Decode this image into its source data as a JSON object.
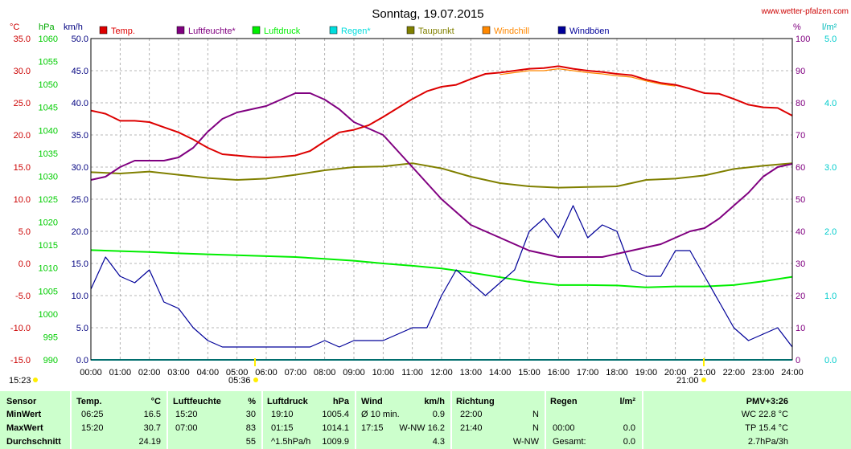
{
  "header": {
    "title": "Sonntag, 19.07.2015",
    "site": "www.wetter-pfalzen.com"
  },
  "axes": {
    "temp": {
      "unit": "°C",
      "min": -15,
      "max": 35,
      "step": 5,
      "color": "#cc0000"
    },
    "pressure": {
      "unit": "hPa",
      "min": 990,
      "max": 1060,
      "step": 5,
      "color": "#00cc00"
    },
    "wind": {
      "unit": "km/h",
      "min": 0,
      "max": 50,
      "step": 5,
      "color": "#000080"
    },
    "humidity": {
      "unit": "%",
      "min": 0,
      "max": 100,
      "step": 10,
      "color": "#800080"
    },
    "rain": {
      "unit": "l/m²",
      "min": 0,
      "max": 5,
      "step": 1,
      "color": "#00cccc"
    }
  },
  "legend": [
    {
      "label": "Temp.",
      "color": "#dd0000"
    },
    {
      "label": "Luftfeuchte*",
      "color": "#800080"
    },
    {
      "label": "Luftdruck",
      "color": "#00ee00"
    },
    {
      "label": "Regen*",
      "color": "#00dddd"
    },
    {
      "label": "Taupunkt",
      "color": "#808000"
    },
    {
      "label": "Windchill",
      "color": "#ff8800"
    },
    {
      "label": "Windböen",
      "color": "#000099"
    }
  ],
  "markers": {
    "left": "15:23",
    "sunrise": "05:36",
    "sunset": "21:00"
  },
  "chart_data": {
    "type": "line",
    "title": "Sonntag, 19.07.2015",
    "x_ticks": [
      "00:00",
      "01:00",
      "02:00",
      "03:00",
      "04:00",
      "05:00",
      "06:00",
      "07:00",
      "08:00",
      "09:00",
      "10:00",
      "11:00",
      "12:00",
      "13:00",
      "14:00",
      "15:00",
      "16:00",
      "17:00",
      "18:00",
      "19:00",
      "20:00",
      "21:00",
      "22:00",
      "23:00",
      "24:00"
    ],
    "x_range_hours": [
      0,
      24
    ],
    "grid": true,
    "legend_position": "top",
    "series": [
      {
        "name": "Temp.",
        "axis": "temp",
        "color": "#dd0000",
        "x": [
          0,
          0.5,
          1,
          1.5,
          2,
          2.5,
          3,
          3.5,
          4,
          4.5,
          5,
          5.5,
          6,
          6.5,
          7,
          7.5,
          8,
          8.5,
          9,
          9.5,
          10,
          10.5,
          11,
          11.5,
          12,
          12.5,
          13,
          13.5,
          14,
          14.5,
          15,
          15.5,
          16,
          16.5,
          17,
          17.5,
          18,
          18.5,
          19,
          19.5,
          20,
          20.5,
          21,
          21.5,
          22,
          22.5,
          23,
          23.5,
          24
        ],
        "y": [
          23.8,
          23.3,
          22.2,
          22.2,
          22.0,
          21.2,
          20.4,
          19.3,
          18.0,
          17.0,
          16.8,
          16.6,
          16.5,
          16.6,
          16.8,
          17.5,
          19.0,
          20.4,
          20.8,
          21.5,
          22.8,
          24.2,
          25.6,
          26.8,
          27.5,
          27.8,
          28.7,
          29.5,
          29.7,
          30.0,
          30.3,
          30.4,
          30.7,
          30.3,
          30.0,
          29.8,
          29.5,
          29.3,
          28.6,
          28.1,
          27.8,
          27.2,
          26.5,
          26.4,
          25.6,
          24.7,
          24.3,
          24.2,
          23.0
        ]
      },
      {
        "name": "Windchill",
        "axis": "temp",
        "color": "#ff8800",
        "x": [
          14,
          14.5,
          15,
          15.5,
          16,
          16.5,
          17,
          17.5,
          18,
          18.5,
          19,
          19.5,
          20
        ],
        "y": [
          29.4,
          29.7,
          30.0,
          30.0,
          30.3,
          30.0,
          29.7,
          29.5,
          29.2,
          29.0,
          28.4,
          27.9,
          27.6
        ]
      },
      {
        "name": "Taupunkt",
        "axis": "temp",
        "color": "#808000",
        "x": [
          0,
          1,
          2,
          3,
          4,
          5,
          6,
          7,
          8,
          9,
          10,
          11,
          12,
          13,
          14,
          15,
          16,
          17,
          18,
          19,
          20,
          21,
          22,
          23,
          24
        ],
        "y": [
          14.2,
          14.0,
          14.3,
          13.8,
          13.3,
          13.0,
          13.2,
          13.8,
          14.5,
          15.0,
          15.1,
          15.6,
          14.8,
          13.5,
          12.5,
          12.0,
          11.8,
          11.9,
          12.0,
          13.0,
          13.2,
          13.7,
          14.7,
          15.2,
          15.6
        ]
      },
      {
        "name": "Luftfeuchte*",
        "axis": "humidity",
        "color": "#800080",
        "x": [
          0,
          0.5,
          1,
          1.5,
          2,
          2.5,
          3,
          3.5,
          4,
          4.5,
          5,
          5.5,
          6,
          6.5,
          7,
          7.5,
          8,
          8.5,
          9,
          9.5,
          10,
          10.5,
          11,
          11.5,
          12,
          12.5,
          13,
          13.5,
          14,
          14.5,
          15,
          15.5,
          16,
          16.5,
          17,
          17.5,
          18,
          18.5,
          19,
          19.5,
          20,
          20.5,
          21,
          21.5,
          22,
          22.5,
          23,
          23.5,
          24
        ],
        "y": [
          56,
          57,
          60,
          62,
          62,
          62,
          63,
          66,
          71,
          75,
          77,
          78,
          79,
          81,
          83,
          83,
          81,
          78,
          74,
          72,
          70,
          65,
          60,
          55,
          50,
          46,
          42,
          40,
          38,
          36,
          34,
          33,
          32,
          32,
          32,
          32,
          33,
          34,
          35,
          36,
          38,
          40,
          41,
          44,
          48,
          52,
          57,
          60,
          61
        ]
      },
      {
        "name": "Luftdruck",
        "axis": "pressure",
        "color": "#00ee00",
        "x": [
          0,
          1,
          2,
          3,
          4,
          5,
          6,
          7,
          8,
          9,
          10,
          11,
          12,
          13,
          14,
          15,
          16,
          17,
          18,
          19,
          20,
          21,
          22,
          23,
          24
        ],
        "y": [
          1013.9,
          1013.7,
          1013.5,
          1013.2,
          1013.0,
          1012.8,
          1012.6,
          1012.4,
          1012.0,
          1011.6,
          1011.0,
          1010.5,
          1009.9,
          1009.0,
          1008.0,
          1007.0,
          1006.3,
          1006.3,
          1006.2,
          1005.8,
          1006.0,
          1006.0,
          1006.3,
          1007.1,
          1008.1
        ]
      },
      {
        "name": "Regen*",
        "axis": "rain",
        "color": "#00dddd",
        "x": [
          0,
          24
        ],
        "y": [
          0,
          0
        ]
      },
      {
        "name": "Windböen",
        "axis": "wind",
        "color": "#000099",
        "x": [
          0,
          0.5,
          1,
          1.5,
          2,
          2.5,
          3,
          3.5,
          4,
          4.5,
          5,
          5.5,
          6,
          6.5,
          7,
          7.5,
          8,
          8.5,
          9,
          9.5,
          10,
          10.5,
          11,
          11.5,
          12,
          12.5,
          13,
          13.5,
          14,
          14.5,
          15,
          15.5,
          16,
          16.5,
          17,
          17.5,
          18,
          18.5,
          19,
          19.5,
          20,
          20.5,
          21,
          21.5,
          22,
          22.5,
          23,
          23.5,
          24
        ],
        "y": [
          11,
          16,
          13,
          12,
          14,
          9,
          8,
          5,
          3,
          2,
          2,
          2,
          2,
          2,
          2,
          2,
          3,
          2,
          3,
          3,
          3,
          4,
          5,
          5,
          10,
          14,
          12,
          10,
          12,
          14,
          20,
          22,
          19,
          24,
          19,
          21,
          20,
          14,
          13,
          13,
          17,
          17,
          13,
          9,
          5,
          3,
          4,
          5,
          2
        ]
      }
    ]
  },
  "stats": {
    "headers": {
      "sensor": "Sensor",
      "temp": "Temp.",
      "temp_unit": "°C",
      "humidity": "Luftfeuchte",
      "humidity_unit": "%",
      "pressure": "Luftdruck",
      "pressure_unit": "hPa",
      "wind": "Wind",
      "wind_unit": "km/h",
      "direction": "Richtung",
      "rain": "Regen",
      "rain_unit": "l/m²",
      "pmv": "PMV+3:26"
    },
    "rows": [
      {
        "label": "MinWert",
        "temp_time": "06:25",
        "temp": "16.5",
        "hum_time": "15:20",
        "hum": "30",
        "pres_time": "19:10",
        "pres": "1005.4",
        "wind_time": "Ø 10 min.",
        "wind": "0.9",
        "dir_time": "22:00",
        "dir": "N",
        "rain_time": "",
        "rain": "",
        "pmv": "WC 22.8 °C"
      },
      {
        "label": "MaxWert",
        "temp_time": "15:20",
        "temp": "30.7",
        "hum_time": "07:00",
        "hum": "83",
        "pres_time": "01:15",
        "pres": "1014.1",
        "wind_time": "17:15",
        "wind": "W-NW 16.2",
        "dir_time": "21:40",
        "dir": "N",
        "rain_time": "00:00",
        "rain": "0.0",
        "pmv": "TP 15.4 °C"
      },
      {
        "label": "Durchschnitt",
        "temp_time": "",
        "temp": "24.19",
        "hum_time": "",
        "hum": "55",
        "pres_time": "^1.5hPa/h",
        "pres": "1009.9",
        "wind_time": "",
        "wind": "4.3",
        "dir_time": "",
        "dir": "W-NW",
        "rain_time": "Gesamt:",
        "rain": "0.0",
        "pmv": "2.7hPa/3h"
      }
    ]
  }
}
